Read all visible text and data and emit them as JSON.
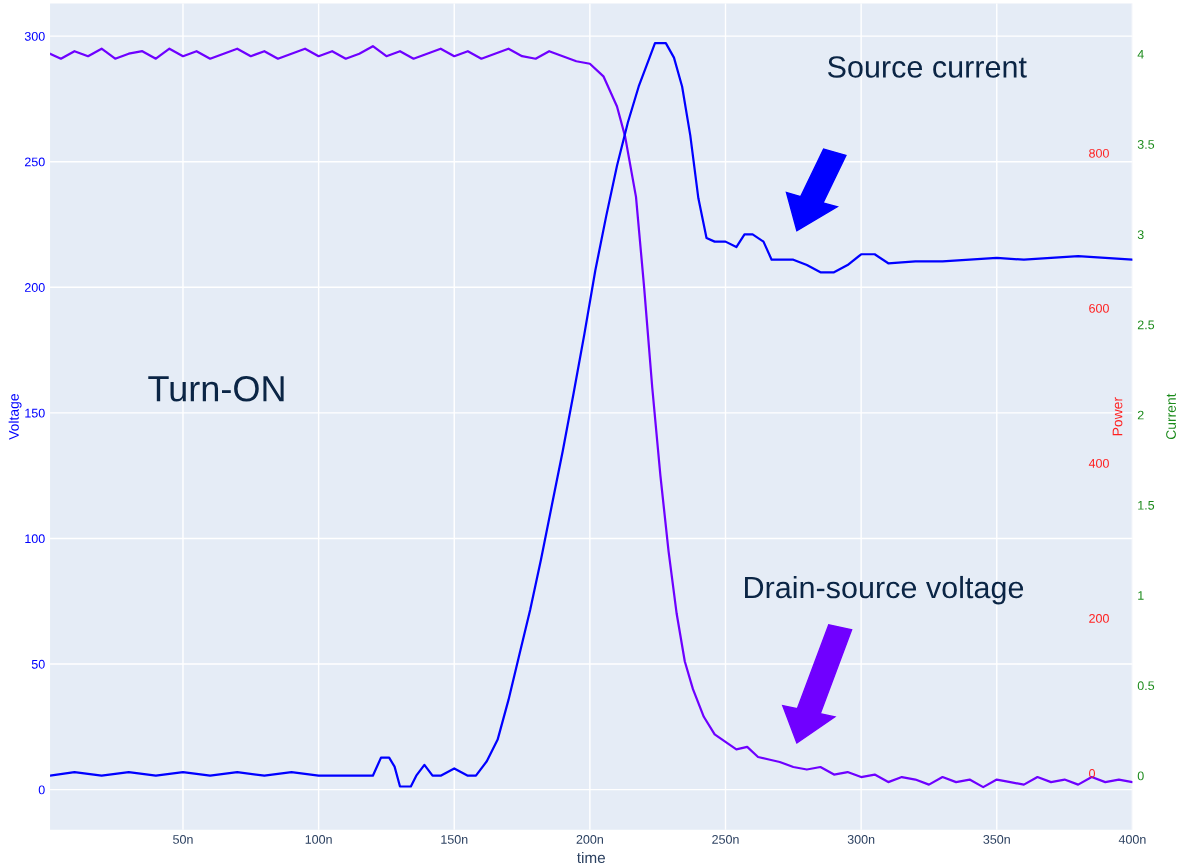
{
  "chart_data": {
    "type": "line",
    "xlabel": "time",
    "ylabel": "Voltage",
    "y2label": "Current",
    "y3label": "Power",
    "xlim": [
      1,
      400
    ],
    "xticks": [
      {
        "value": 50,
        "label": "50n"
      },
      {
        "value": 100,
        "label": "100n"
      },
      {
        "value": 150,
        "label": "150n"
      },
      {
        "value": 200,
        "label": "200n"
      },
      {
        "value": 250,
        "label": "250n"
      },
      {
        "value": 300,
        "label": "300n"
      },
      {
        "value": 350,
        "label": "350n"
      },
      {
        "value": 400,
        "label": "400n"
      }
    ],
    "ylim": [
      -16,
      313
    ],
    "yticks": [
      0,
      50,
      100,
      150,
      200,
      250,
      300
    ],
    "y2lim": [
      -0.3,
      4.28
    ],
    "y2ticks": [
      0,
      0.5,
      1,
      1.5,
      2,
      2.5,
      3,
      3.5,
      4
    ],
    "y3lim": [
      -73,
      993
    ],
    "y3ticks": [
      0,
      200,
      400,
      600,
      800
    ],
    "grid": true,
    "legend": false,
    "series": [
      {
        "color": "#6e00ff",
        "x": [
          1,
          5,
          10,
          15,
          20,
          25,
          30,
          35,
          40,
          45,
          50,
          55,
          60,
          65,
          70,
          75,
          80,
          85,
          90,
          95,
          100,
          105,
          110,
          115,
          120,
          125,
          130,
          135,
          140,
          145,
          150,
          155,
          160,
          165,
          170,
          175,
          180,
          185,
          190,
          195,
          200,
          205,
          210,
          213,
          217,
          220,
          223,
          226,
          229,
          232,
          235,
          238,
          242,
          246,
          250,
          254,
          258,
          262,
          266,
          270,
          275,
          280,
          285,
          290,
          295,
          300,
          305,
          310,
          315,
          320,
          325,
          330,
          335,
          340,
          345,
          350,
          355,
          360,
          365,
          370,
          375,
          380,
          385,
          390,
          395,
          400
        ],
        "values": [
          293,
          291,
          294,
          292,
          295,
          291,
          293,
          294,
          291,
          295,
          292,
          294,
          291,
          293,
          295,
          292,
          294,
          291,
          293,
          295,
          292,
          294,
          291,
          293,
          296,
          292,
          294,
          291,
          293,
          295,
          292,
          294,
          291,
          293,
          295,
          292,
          291,
          294,
          292,
          290,
          289,
          284,
          272,
          260,
          236,
          200,
          160,
          125,
          95,
          70,
          51,
          40,
          29,
          22,
          19,
          16,
          17,
          13,
          12,
          11,
          9,
          8,
          9,
          6,
          7,
          5,
          6,
          3,
          5,
          4,
          2,
          5,
          3,
          4,
          1,
          4,
          3,
          2,
          5,
          3,
          4,
          2,
          5,
          3,
          4,
          3
        ]
      },
      {
        "color": "#0000ff",
        "axis": "y2",
        "x": [
          1,
          10,
          20,
          30,
          40,
          50,
          60,
          70,
          80,
          90,
          100,
          110,
          120,
          123,
          126,
          128,
          130,
          134,
          136,
          139,
          142,
          145,
          150,
          155,
          158,
          162,
          166,
          170,
          174,
          178,
          182,
          186,
          190,
          194,
          198,
          202,
          206,
          210,
          214,
          218,
          222,
          224,
          228,
          231,
          234,
          237,
          240,
          243,
          246,
          250,
          254,
          257,
          260,
          264,
          267,
          270,
          275,
          280,
          285,
          290,
          295,
          300,
          305,
          310,
          320,
          330,
          340,
          350,
          360,
          370,
          380,
          390,
          400
        ],
        "values": [
          0.0,
          0.02,
          0.0,
          0.02,
          0.0,
          0.02,
          0.0,
          0.02,
          0.0,
          0.02,
          0.0,
          0.0,
          0.0,
          0.1,
          0.1,
          0.05,
          -0.06,
          -0.06,
          0.0,
          0.06,
          0.0,
          0.0,
          0.04,
          0.0,
          0.0,
          0.08,
          0.2,
          0.42,
          0.67,
          0.92,
          1.2,
          1.5,
          1.8,
          2.12,
          2.45,
          2.8,
          3.1,
          3.38,
          3.62,
          3.82,
          3.98,
          4.06,
          4.06,
          3.98,
          3.82,
          3.55,
          3.2,
          2.98,
          2.96,
          2.96,
          2.93,
          3.0,
          3.0,
          2.96,
          2.86,
          2.86,
          2.86,
          2.83,
          2.79,
          2.79,
          2.83,
          2.89,
          2.89,
          2.84,
          2.85,
          2.85,
          2.86,
          2.87,
          2.86,
          2.87,
          2.88,
          2.87,
          2.86
        ]
      }
    ],
    "annotations": [
      "Turn-ON",
      "Source current",
      "Drain-source voltage"
    ]
  }
}
